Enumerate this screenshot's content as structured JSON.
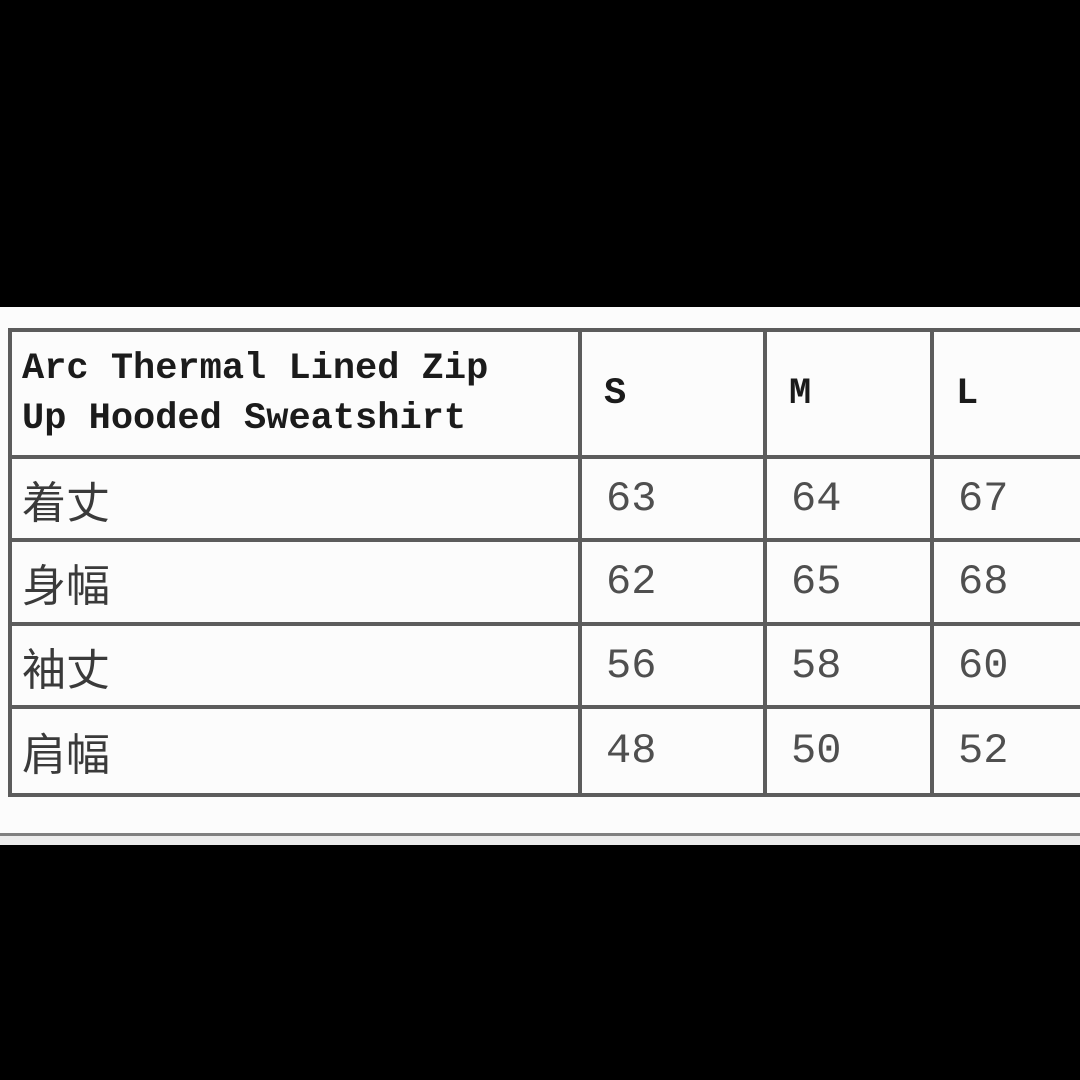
{
  "colors": {
    "background": "#000000",
    "panel_background": "#fcfcfc",
    "table_border": "#5c5c5c",
    "title_text": "#1b1b1b",
    "value_text": "#4f4f4f",
    "label_text": "#3a3a3a",
    "bottom_rule_dark": "#7f7f7f",
    "bottom_rule_light": "#ececec"
  },
  "chart_data": {
    "type": "table",
    "title": "Arc Thermal Lined Zip Up Hooded Sweatshirt",
    "columns": [
      "S",
      "M",
      "L"
    ],
    "row_labels": [
      "着丈",
      "身幅",
      "袖丈",
      "肩幅"
    ],
    "rows": [
      {
        "label": "着丈",
        "values": [
          "63",
          "64",
          "67"
        ]
      },
      {
        "label": "身幅",
        "values": [
          "62",
          "65",
          "68"
        ]
      },
      {
        "label": "袖丈",
        "values": [
          "56",
          "58",
          "60"
        ]
      },
      {
        "label": "肩幅",
        "values": [
          "48",
          "50",
          "52"
        ]
      }
    ],
    "layout_hints": {
      "table_clipped_right": true,
      "background": "black letterbox above and below white band"
    }
  }
}
